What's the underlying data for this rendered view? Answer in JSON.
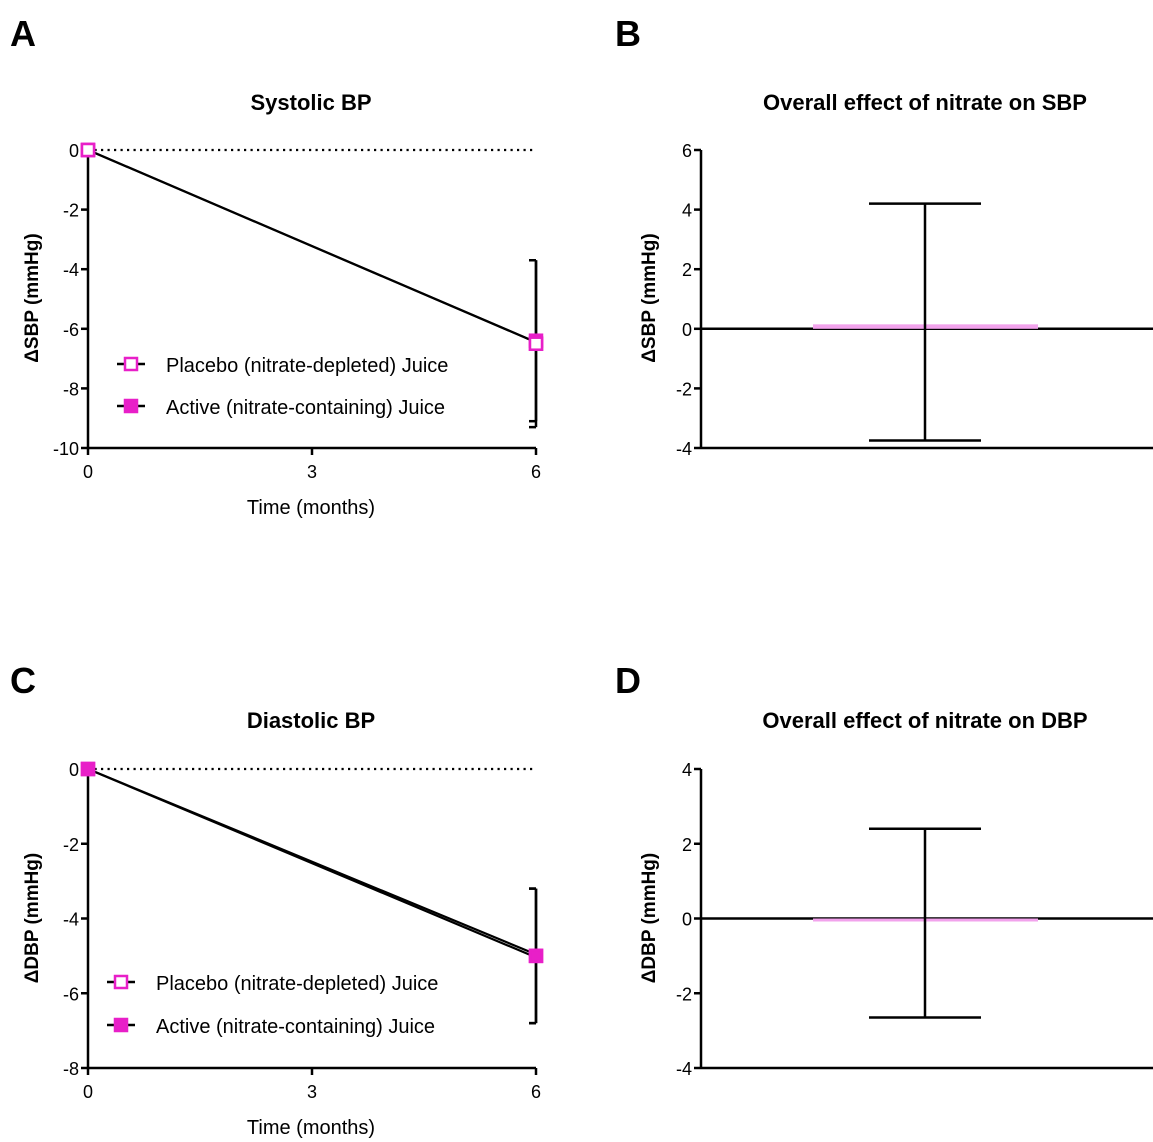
{
  "colors": {
    "placebo": "#e81fc8",
    "active": "#e81fc8",
    "effect_bar": "#f2a3ec",
    "axis": "#000000"
  },
  "chart_data": [
    {
      "panel": "A",
      "type": "line",
      "title": "Systolic BP",
      "xlabel": "Time (months)",
      "ylabel": "ΔSBP (mmHg)",
      "x": [
        0,
        6
      ],
      "x_ticks": [
        0,
        3,
        6
      ],
      "ylim": [
        -10,
        0
      ],
      "y_ticks": [
        0,
        -2,
        -4,
        -6,
        -8,
        -10
      ],
      "zero_line": "dotted",
      "legend_position": "bottom-left",
      "series": [
        {
          "name": "Placebo (nitrate-depleted) Juice",
          "marker": "open-square",
          "values": [
            0,
            -6.5
          ],
          "error": [
            0,
            2.8
          ]
        },
        {
          "name": "Active (nitrate-containing) Juice",
          "marker": "filled-square",
          "values": [
            0,
            -6.4
          ],
          "error": [
            0,
            2.7
          ]
        }
      ]
    },
    {
      "panel": "B",
      "type": "bar",
      "title": "Overall effect of nitrate on SBP",
      "ylabel": "ΔSBP (mmHg)",
      "ylim": [
        -4,
        6
      ],
      "y_ticks": [
        6,
        4,
        2,
        0,
        -2,
        -4
      ],
      "value": 0.15,
      "error_low": -3.75,
      "error_high": 4.2
    },
    {
      "panel": "C",
      "type": "line",
      "title": "Diastolic BP",
      "xlabel": "Time (months)",
      "ylabel": "ΔDBP (mmHg)",
      "x": [
        0,
        6
      ],
      "x_ticks": [
        0,
        3,
        6
      ],
      "ylim": [
        -8,
        0
      ],
      "y_ticks": [
        0,
        -2,
        -4,
        -6,
        -8
      ],
      "zero_line": "dotted",
      "legend_position": "bottom-left",
      "series": [
        {
          "name": "Placebo (nitrate-depleted) Juice",
          "marker": "open-square",
          "values": [
            0,
            -5.0
          ],
          "error": [
            0,
            1.8
          ]
        },
        {
          "name": "Active (nitrate-containing) Juice",
          "marker": "filled-square",
          "values": [
            0,
            -5.0
          ],
          "error": [
            0,
            1.8
          ]
        }
      ]
    },
    {
      "panel": "D",
      "type": "bar",
      "title": "Overall effect of nitrate on DBP",
      "ylabel": "ΔDBP (mmHg)",
      "ylim": [
        -4,
        4
      ],
      "y_ticks": [
        4,
        2,
        0,
        -2,
        -4
      ],
      "value": -0.05,
      "error_low": -2.65,
      "error_high": 2.4
    }
  ]
}
